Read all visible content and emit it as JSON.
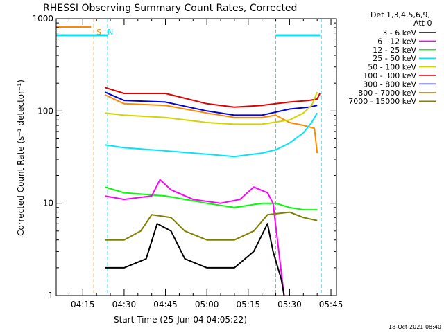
{
  "chart_data": {
    "type": "line",
    "title": "RHESSI Observing Summary Count Rates, Corrected",
    "xlabel": "Start Time (25-Jun-04 04:05:22)",
    "ylabel": "Corrected Count Rate (s⁻¹ detector⁻¹)",
    "y_scale": "log",
    "ylim": [
      1,
      1000
    ],
    "xlim": [
      "04:05:22",
      "05:47:00"
    ],
    "grid": false,
    "legend_placement": "top-right, outside plot",
    "x_ticks": [
      "04:15",
      "04:30",
      "04:45",
      "05:00",
      "05:15",
      "05:30",
      "05:45"
    ],
    "y_ticks": [
      "1",
      "10",
      "100",
      "1000"
    ],
    "legend": {
      "header": [
        "Det 1,3,4,5,6,9,",
        "Att 0"
      ],
      "entries": [
        {
          "label": "3 - 6 keV",
          "color": "#000000"
        },
        {
          "label": "6 - 12 keV",
          "color": "#ff00ff"
        },
        {
          "label": "12 - 25 keV",
          "color": "#00ff00"
        },
        {
          "label": "25 - 50 keV",
          "color": "#00e5ff"
        },
        {
          "label": "50 - 100 keV",
          "color": "#d4d400"
        },
        {
          "label": "100 - 300 keV",
          "color": "#e00000"
        },
        {
          "label": "300 - 800 keV",
          "color": "#0000e0"
        },
        {
          "label": "800 - 7000 keV",
          "color": "#ff8800"
        },
        {
          "label": "7000 - 15000 keV",
          "color": "#808000"
        }
      ]
    },
    "annotations": [
      {
        "text": "S",
        "color": "#ff8800",
        "time": "04:20.0"
      },
      {
        "text": "N",
        "color": "#00e5ff",
        "time": "04:24.0"
      }
    ],
    "flag_bars": [
      {
        "name": "saa",
        "color": "#ff8800",
        "start": "04:05:22",
        "end": "04:18:00",
        "level": 820
      },
      {
        "name": "night",
        "color": "#00e5ff",
        "start": "04:05:22",
        "end": "04:24:00",
        "level": 660
      },
      {
        "name": "night",
        "color": "#00e5ff",
        "start": "05:25:00",
        "end": "05:41:00",
        "level": 660
      }
    ],
    "vertical_lines": [
      {
        "color": "#ff8800",
        "time": "04:19:00"
      },
      {
        "color": "#00e5ff",
        "time": "04:24:00"
      },
      {
        "color": "#00e5ff",
        "time": "05:25:00"
      },
      {
        "color": "#00e5ff",
        "time": "05:41:30"
      }
    ],
    "series": [
      {
        "name": "100 - 300 keV",
        "color": "#e00000",
        "points": [
          [
            "04:23",
            180
          ],
          [
            "04:30",
            155
          ],
          [
            "04:45",
            155
          ],
          [
            "05:00",
            120
          ],
          [
            "05:10",
            110
          ],
          [
            "05:20",
            115
          ],
          [
            "05:30",
            125
          ],
          [
            "05:37",
            130
          ],
          [
            "05:40",
            135
          ],
          [
            "05:41",
            155
          ]
        ]
      },
      {
        "name": "300 - 800 keV",
        "color": "#0000e0",
        "points": [
          [
            "04:23",
            160
          ],
          [
            "04:30",
            130
          ],
          [
            "04:45",
            125
          ],
          [
            "05:00",
            100
          ],
          [
            "05:10",
            90
          ],
          [
            "05:20",
            90
          ],
          [
            "05:30",
            105
          ],
          [
            "05:37",
            110
          ],
          [
            "05:40",
            115
          ]
        ]
      },
      {
        "name": "800 - 7000 keV",
        "color": "#ff8800",
        "points": [
          [
            "04:23",
            150
          ],
          [
            "04:30",
            120
          ],
          [
            "04:45",
            115
          ],
          [
            "05:00",
            95
          ],
          [
            "05:10",
            85
          ],
          [
            "05:20",
            85
          ],
          [
            "05:25",
            90
          ],
          [
            "05:30",
            75
          ],
          [
            "05:35",
            70
          ],
          [
            "05:39",
            65
          ],
          [
            "05:40",
            35
          ]
        ]
      },
      {
        "name": "50 - 100 keV",
        "color": "#d4d400",
        "points": [
          [
            "04:23",
            95
          ],
          [
            "04:30",
            90
          ],
          [
            "04:45",
            85
          ],
          [
            "05:00",
            75
          ],
          [
            "05:10",
            72
          ],
          [
            "05:20",
            72
          ],
          [
            "05:30",
            80
          ],
          [
            "05:35",
            95
          ],
          [
            "05:38",
            115
          ],
          [
            "05:40",
            160
          ]
        ]
      },
      {
        "name": "25 - 50 keV",
        "color": "#00e5ff",
        "points": [
          [
            "04:23",
            43
          ],
          [
            "04:30",
            40
          ],
          [
            "04:45",
            37
          ],
          [
            "05:00",
            34
          ],
          [
            "05:10",
            32
          ],
          [
            "05:20",
            35
          ],
          [
            "05:25",
            38
          ],
          [
            "05:30",
            45
          ],
          [
            "05:35",
            58
          ],
          [
            "05:38",
            75
          ],
          [
            "05:40",
            95
          ]
        ]
      },
      {
        "name": "12 - 25 keV",
        "color": "#00ff00",
        "points": [
          [
            "04:23",
            15
          ],
          [
            "04:30",
            13
          ],
          [
            "04:45",
            12
          ],
          [
            "05:00",
            10
          ],
          [
            "05:10",
            9
          ],
          [
            "05:20",
            10
          ],
          [
            "05:25",
            10
          ],
          [
            "05:30",
            9
          ],
          [
            "05:35",
            8.5
          ],
          [
            "05:40",
            8.5
          ]
        ]
      },
      {
        "name": "6 - 12 keV",
        "color": "#ff00ff",
        "points": [
          [
            "04:23",
            12
          ],
          [
            "04:30",
            11
          ],
          [
            "04:40",
            12
          ],
          [
            "04:43",
            18
          ],
          [
            "04:47",
            14
          ],
          [
            "04:55",
            11
          ],
          [
            "05:05",
            10
          ],
          [
            "05:12",
            11
          ],
          [
            "05:17",
            15
          ],
          [
            "05:22",
            13
          ],
          [
            "05:24",
            10
          ],
          [
            "05:28",
            1
          ]
        ]
      },
      {
        "name": "7000 - 15000 keV",
        "color": "#808000",
        "points": [
          [
            "04:23",
            4
          ],
          [
            "04:30",
            4
          ],
          [
            "04:36",
            5
          ],
          [
            "04:40",
            7.5
          ],
          [
            "04:47",
            7
          ],
          [
            "04:52",
            5
          ],
          [
            "05:00",
            4
          ],
          [
            "05:10",
            4
          ],
          [
            "05:17",
            5
          ],
          [
            "05:22",
            7.5
          ],
          [
            "05:30",
            8
          ],
          [
            "05:35",
            7
          ],
          [
            "05:40",
            6.5
          ]
        ]
      },
      {
        "name": "3 - 6 keV",
        "color": "#000000",
        "points": [
          [
            "04:23",
            2
          ],
          [
            "04:30",
            2
          ],
          [
            "04:38",
            2.5
          ],
          [
            "04:42",
            6
          ],
          [
            "04:47",
            5
          ],
          [
            "04:52",
            2.5
          ],
          [
            "05:00",
            2
          ],
          [
            "05:10",
            2
          ],
          [
            "05:17",
            3
          ],
          [
            "05:22",
            6
          ],
          [
            "05:24",
            3
          ],
          [
            "05:27",
            1.5
          ],
          [
            "05:28",
            1
          ]
        ]
      }
    ]
  },
  "footer": {
    "timestamp": "18-Oct-2021 08:40"
  }
}
